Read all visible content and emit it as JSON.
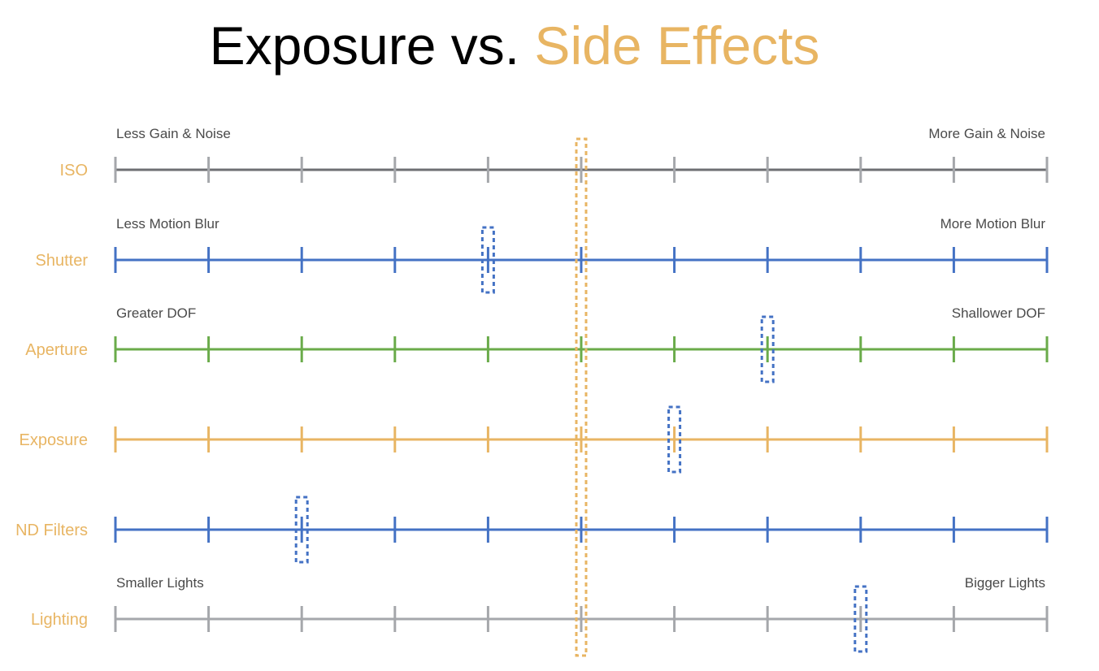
{
  "title": {
    "main": "Exposure vs.",
    "accent": "Side Effects"
  },
  "colors": {
    "accent": "#E8B563",
    "iso_line": "#6E6F73",
    "iso_ticks": "#A5A7AB",
    "blue": "#4472C4",
    "green": "#6AAB4A",
    "gray": "#A5A7AB",
    "label_text": "#4A4A4A"
  },
  "scale": {
    "stops": 10,
    "center_stop": 5,
    "center_marker": "dashed-orange-box"
  },
  "rows": [
    {
      "key": "iso",
      "label": "ISO",
      "left_text": "Less Gain & Noise",
      "right_text": "More Gain & Noise",
      "color": "iso",
      "marker_stop": null
    },
    {
      "key": "shutter",
      "label": "Shutter",
      "left_text": "Less Motion Blur",
      "right_text": "More Motion Blur",
      "color": "blue",
      "marker_stop": 4
    },
    {
      "key": "aperture",
      "label": "Aperture",
      "left_text": "Greater DOF",
      "right_text": "Shallower DOF",
      "color": "green",
      "marker_stop": 7
    },
    {
      "key": "exposure",
      "label": "Exposure",
      "left_text": "",
      "right_text": "",
      "color": "accent",
      "marker_stop": 6
    },
    {
      "key": "nd-filters",
      "label": "ND Filters",
      "left_text": "",
      "right_text": "",
      "color": "blue",
      "marker_stop": 2
    },
    {
      "key": "lighting",
      "label": "Lighting",
      "left_text": "Smaller Lights",
      "right_text": "Bigger Lights",
      "color": "gray",
      "marker_stop": 8
    }
  ]
}
